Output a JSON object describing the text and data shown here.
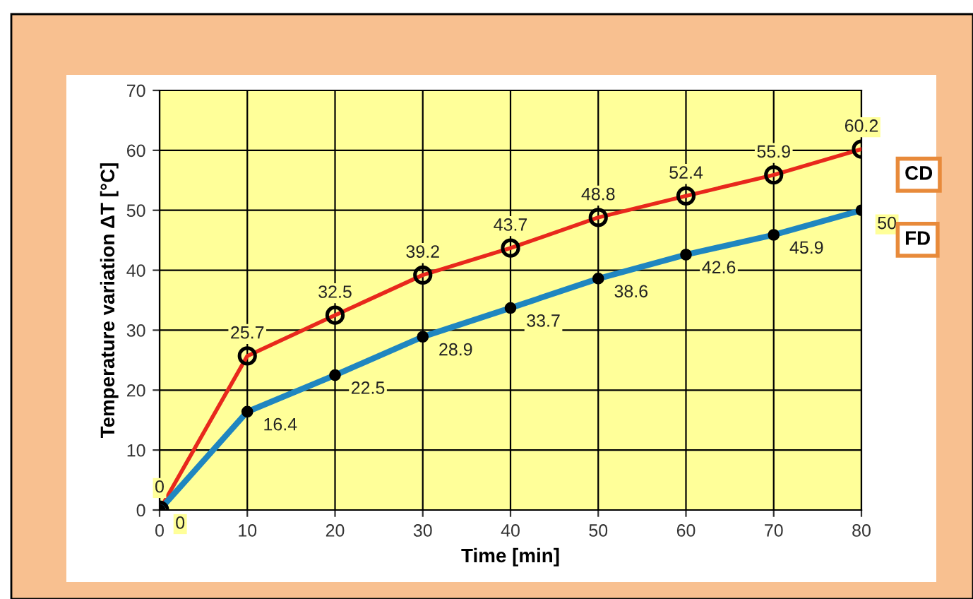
{
  "chart_data": {
    "type": "line",
    "xlabel": "Time [min]",
    "ylabel": "Temperature variation ΔT [°C]",
    "x": [
      0,
      10,
      20,
      30,
      40,
      50,
      60,
      70,
      80
    ],
    "series": [
      {
        "name": "CD",
        "color": "#e8281c",
        "marker": "circle",
        "values": [
          0,
          25.7,
          32.5,
          39.2,
          43.7,
          48.8,
          52.4,
          55.9,
          60.2
        ]
      },
      {
        "name": "FD",
        "color": "#1f86c0",
        "marker": "circle",
        "values": [
          0,
          16.4,
          22.5,
          28.9,
          33.7,
          38.6,
          42.6,
          45.9,
          50
        ]
      }
    ],
    "xlim": [
      0,
      80
    ],
    "xticks": [
      0,
      10,
      20,
      30,
      40,
      50,
      60,
      70,
      80
    ],
    "ylim": [
      0,
      70
    ],
    "yticks": [
      0,
      10,
      20,
      30,
      40,
      50,
      60,
      70
    ],
    "grid": true,
    "data_labels": true,
    "legend": false,
    "line_style": "solid"
  }
}
